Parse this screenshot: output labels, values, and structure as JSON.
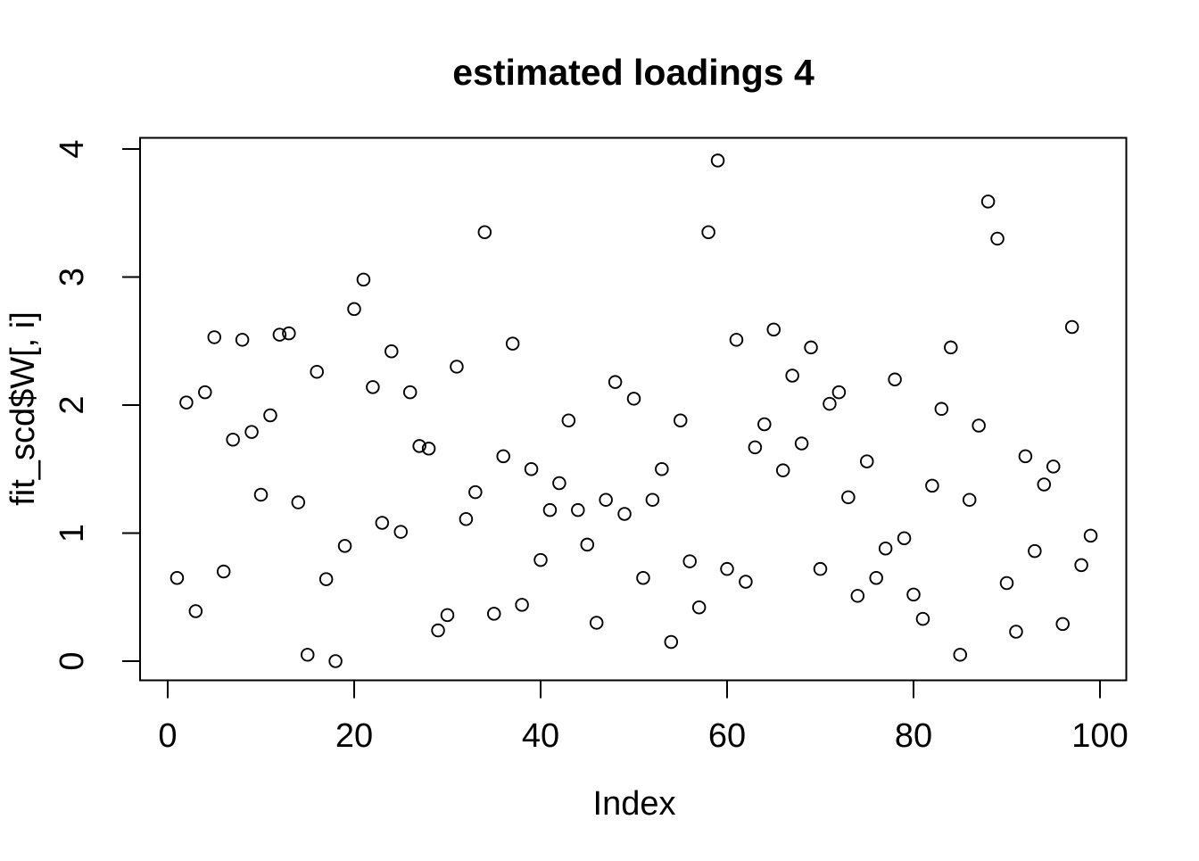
{
  "page": {
    "background_color": "#ffffff",
    "foreground_color": "#000000"
  },
  "chart_data": {
    "type": "scatter",
    "title": "estimated loadings 4",
    "xlabel": "Index",
    "ylabel": "fit_scd$W[, i]",
    "xlim": [
      0,
      100
    ],
    "ylim": [
      0,
      4
    ],
    "x_ticks": [
      0,
      20,
      40,
      60,
      80,
      100
    ],
    "y_ticks": [
      0,
      1,
      2,
      3,
      4
    ],
    "grid": false,
    "legend": "none",
    "marker": {
      "shape": "open-circle",
      "stroke_color": "#000000",
      "fill": "none"
    },
    "series": [
      {
        "name": "fit_scd$W[, i]",
        "x": [
          1,
          2,
          3,
          4,
          5,
          6,
          7,
          8,
          9,
          10,
          11,
          12,
          13,
          14,
          15,
          16,
          17,
          18,
          19,
          20,
          21,
          22,
          23,
          24,
          25,
          26,
          27,
          28,
          29,
          30,
          31,
          32,
          33,
          34,
          35,
          36,
          37,
          38,
          39,
          40,
          41,
          42,
          43,
          44,
          45,
          46,
          47,
          48,
          49,
          50,
          51,
          52,
          53,
          54,
          55,
          56,
          57,
          58,
          59,
          60,
          61,
          62,
          63,
          64,
          65,
          66,
          67,
          68,
          69,
          70,
          71,
          72,
          73,
          74,
          75,
          76,
          77,
          78,
          79,
          80,
          81,
          82,
          83,
          84,
          85,
          86,
          87,
          88,
          89,
          90,
          91,
          92,
          93,
          94,
          95,
          96,
          97,
          98,
          99
        ],
        "y": [
          0.65,
          2.02,
          0.39,
          2.1,
          2.53,
          0.7,
          1.73,
          2.51,
          1.79,
          1.3,
          1.92,
          2.55,
          2.56,
          1.24,
          0.05,
          2.26,
          0.64,
          0.0,
          0.9,
          2.75,
          2.98,
          2.14,
          1.08,
          2.42,
          1.01,
          2.1,
          1.68,
          1.66,
          0.24,
          0.36,
          2.3,
          1.11,
          1.32,
          3.35,
          0.37,
          1.6,
          2.48,
          0.44,
          1.5,
          0.79,
          1.18,
          1.39,
          1.88,
          1.18,
          0.91,
          0.3,
          1.26,
          2.18,
          1.15,
          2.05,
          0.65,
          1.26,
          1.5,
          0.15,
          1.88,
          0.78,
          0.42,
          3.35,
          3.91,
          0.72,
          2.51,
          0.62,
          1.67,
          1.85,
          2.59,
          1.49,
          2.23,
          1.7,
          2.45,
          0.72,
          2.01,
          2.1,
          1.28,
          0.51,
          1.56,
          0.65,
          0.88,
          2.2,
          0.96,
          0.52,
          0.33,
          1.37,
          1.97,
          2.45,
          0.05,
          1.26,
          1.84,
          3.59,
          3.3,
          0.61,
          0.23,
          1.6,
          0.86,
          1.38,
          1.52,
          0.29,
          2.61,
          0.75,
          0.98
        ]
      }
    ]
  }
}
